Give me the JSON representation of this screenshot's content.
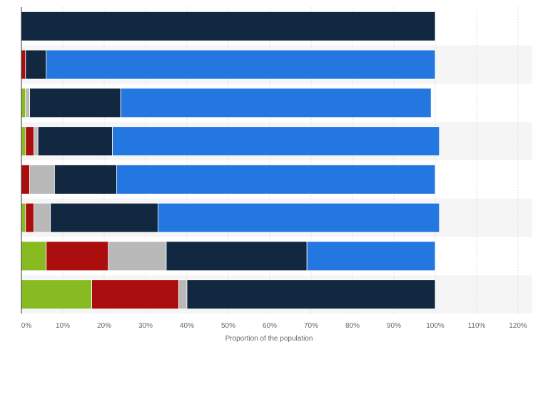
{
  "chart_data": {
    "type": "bar",
    "orientation": "horizontal",
    "stacked": true,
    "xlabel": "Proportion of the population",
    "ylabel": "",
    "xlim": [
      0,
      120
    ],
    "xticks": [
      0,
      10,
      20,
      30,
      40,
      50,
      60,
      70,
      80,
      90,
      100,
      110,
      120
    ],
    "xtick_labels": [
      "0%",
      "10%",
      "20%",
      "30%",
      "40%",
      "50%",
      "60%",
      "70%",
      "80%",
      "90%",
      "100%",
      "110%",
      "120%"
    ],
    "grid": true,
    "legend": "none",
    "colors": [
      "#88bb22",
      "#aa0e0e",
      "#b9b9b9",
      "#122840",
      "#2477e0"
    ],
    "categories": [
      "",
      "",
      "",
      "",
      "",
      "",
      "",
      ""
    ],
    "series": [
      {
        "values": [
          0,
          0,
          1,
          1,
          0,
          1,
          6,
          17
        ]
      },
      {
        "values": [
          0,
          1,
          0,
          2,
          2,
          2,
          15,
          21
        ]
      },
      {
        "values": [
          0,
          0,
          1,
          1,
          6,
          4,
          14,
          2
        ]
      },
      {
        "values": [
          100,
          5,
          22,
          18,
          15,
          26,
          34,
          60
        ]
      },
      {
        "values": [
          0,
          94,
          75,
          79,
          77,
          68,
          31,
          0
        ]
      }
    ]
  }
}
